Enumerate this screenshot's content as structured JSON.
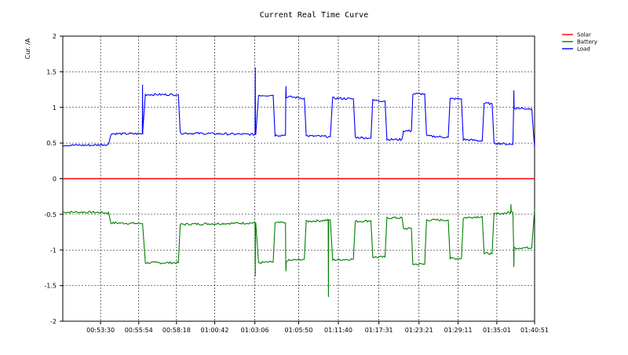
{
  "chart_data": {
    "type": "line",
    "title": "Current Real Time Curve",
    "ylabel": "Cur. /A",
    "xlabel": "",
    "ylim": [
      -2,
      2
    ],
    "y_ticks": [
      "2",
      "1.5",
      "1",
      "0.5",
      "0",
      "-0.5",
      "-1",
      "-1.5",
      "-2"
    ],
    "x_tick_labels": [
      "00:53:30",
      "00:55:54",
      "00:58:18",
      "01:00:42",
      "01:03:06",
      "01:05:50",
      "01:11:40",
      "01:17:31",
      "01:23:21",
      "01:29:11",
      "01:35:01",
      "01:40:51"
    ],
    "x_range": [
      0,
      100
    ],
    "x_tick_positions": [
      8.0,
      16.1,
      24.1,
      32.2,
      40.7,
      50.0,
      58.4,
      67.0,
      75.5,
      83.8,
      92.0,
      100.0
    ],
    "grid": true,
    "legend_position": "top-right",
    "series": [
      {
        "name": "Solar",
        "color": "#ff0000",
        "x": [
          0,
          100
        ],
        "y": [
          0,
          0
        ]
      },
      {
        "name": "Battery",
        "color": "#008000",
        "x": [
          0,
          6.0,
          9.7,
          10.2,
          16.9,
          17.5,
          24.5,
          24.9,
          40.9,
          41.5,
          44.6,
          45.0,
          47.2,
          47.6,
          51.2,
          51.6,
          56.7,
          57.2,
          61.6,
          62.0,
          65.3,
          65.7,
          68.3,
          68.7,
          71.9,
          72.2,
          73.9,
          74.2,
          76.7,
          77.1,
          81.7,
          82.1,
          84.5,
          84.9,
          88.9,
          89.3,
          91.0,
          91.4,
          95.4,
          95.8,
          99.4,
          100
        ],
        "y": [
          -0.47,
          -0.47,
          -0.48,
          -0.62,
          -0.63,
          -1.18,
          -1.18,
          -0.64,
          -0.62,
          -1.18,
          -1.17,
          -0.62,
          -0.62,
          -1.15,
          -1.13,
          -0.6,
          -0.58,
          -1.14,
          -1.13,
          -0.6,
          -0.59,
          -1.1,
          -1.1,
          -0.55,
          -0.55,
          -0.7,
          -0.7,
          -1.2,
          -1.2,
          -0.58,
          -0.58,
          -1.12,
          -1.12,
          -0.55,
          -0.53,
          -1.05,
          -1.05,
          -0.5,
          -0.47,
          -0.97,
          -0.97,
          -0.43
        ]
      },
      {
        "name": "Load",
        "color": "#0000ff",
        "x": [
          0,
          6.0,
          9.7,
          10.2,
          16.9,
          17.5,
          24.5,
          24.9,
          40.9,
          41.5,
          44.6,
          45.0,
          47.2,
          47.6,
          51.2,
          51.6,
          56.7,
          57.2,
          61.6,
          62.0,
          65.3,
          65.7,
          68.3,
          68.7,
          71.9,
          72.2,
          73.9,
          74.2,
          76.7,
          77.1,
          81.7,
          82.1,
          84.5,
          84.9,
          88.9,
          89.3,
          91.0,
          91.4,
          95.4,
          95.8,
          99.4,
          100
        ],
        "y": [
          0.47,
          0.47,
          0.48,
          0.63,
          0.63,
          1.18,
          1.18,
          0.64,
          0.62,
          1.17,
          1.17,
          0.61,
          0.61,
          1.15,
          1.13,
          0.6,
          0.59,
          1.13,
          1.12,
          0.58,
          0.57,
          1.1,
          1.09,
          0.55,
          0.55,
          0.67,
          0.67,
          1.19,
          1.19,
          0.6,
          0.58,
          1.12,
          1.12,
          0.55,
          0.53,
          1.06,
          1.05,
          0.5,
          0.48,
          0.99,
          0.98,
          0.43
        ]
      }
    ],
    "spikes": [
      {
        "series": "Load",
        "x": 16.9,
        "y": 1.32
      },
      {
        "series": "Load",
        "x": 40.8,
        "y": 1.56
      },
      {
        "series": "Load",
        "x": 47.3,
        "y": 1.3
      },
      {
        "series": "Load",
        "x": 95.6,
        "y": 1.24
      },
      {
        "series": "Battery",
        "x": 40.8,
        "y": -1.37
      },
      {
        "series": "Battery",
        "x": 47.3,
        "y": -1.3
      },
      {
        "series": "Battery",
        "x": 56.3,
        "y": -1.66
      },
      {
        "series": "Battery",
        "x": 95.6,
        "y": -1.24
      },
      {
        "series": "Battery",
        "x": 95.0,
        "y": -0.36
      }
    ]
  }
}
